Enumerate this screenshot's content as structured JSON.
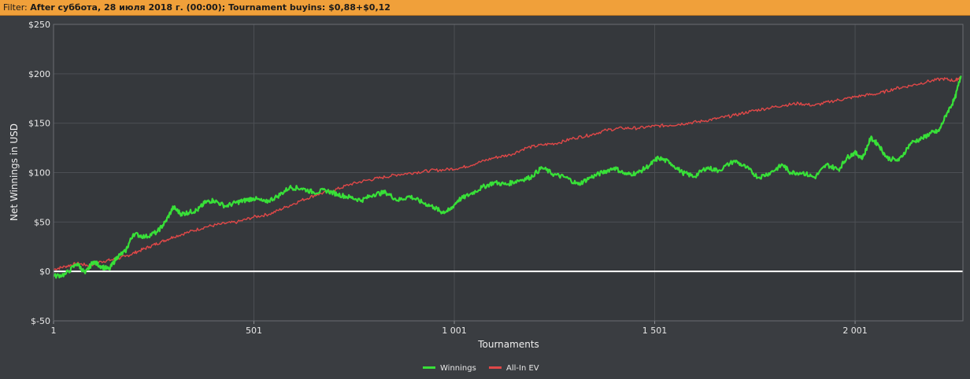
{
  "filter": {
    "label": "Filter:",
    "value": "After суббота, 28 июля 2018 г. (00:00); Tournament buyins: $0,88+$0,12"
  },
  "colors": {
    "background": "#3a3d41",
    "plot_bg": "#35383c",
    "filter_bg": "#f0a03a",
    "winnings": "#38e038",
    "allin_ev": "#e04848",
    "zero_line": "#ffffff"
  },
  "chart_data": {
    "type": "line",
    "xlabel": "Tournaments",
    "ylabel": "Net Winnings in USD",
    "xlim": [
      1,
      2270
    ],
    "ylim": [
      -50,
      250
    ],
    "x_ticks": [
      1,
      501,
      1001,
      1501,
      2001
    ],
    "x_tick_labels": [
      "1",
      "501",
      "1 001",
      "1 501",
      "2 001"
    ],
    "y_ticks": [
      -50,
      0,
      50,
      100,
      150,
      200,
      250
    ],
    "y_tick_labels": [
      "$-50",
      "$0",
      "$50",
      "$100",
      "$150",
      "$200",
      "$250"
    ],
    "grid": true,
    "legend_position": "bottom-center",
    "series": [
      {
        "name": "Winnings",
        "color": "#38e038",
        "x": [
          1,
          30,
          60,
          80,
          100,
          120,
          140,
          160,
          180,
          200,
          230,
          260,
          280,
          300,
          320,
          340,
          360,
          380,
          400,
          430,
          460,
          480,
          500,
          530,
          560,
          590,
          620,
          650,
          680,
          710,
          740,
          770,
          800,
          830,
          860,
          890,
          920,
          950,
          970,
          990,
          1010,
          1040,
          1070,
          1100,
          1130,
          1160,
          1190,
          1220,
          1250,
          1280,
          1310,
          1340,
          1370,
          1400,
          1430,
          1460,
          1490,
          1510,
          1540,
          1570,
          1600,
          1630,
          1660,
          1700,
          1730,
          1760,
          1790,
          1820,
          1840,
          1870,
          1900,
          1930,
          1960,
          1980,
          2000,
          2020,
          2040,
          2060,
          2080,
          2110,
          2140,
          2170,
          2190,
          2210,
          2230,
          2250,
          2265
        ],
        "values": [
          -5,
          -3,
          8,
          -2,
          10,
          5,
          2,
          15,
          20,
          38,
          35,
          40,
          50,
          65,
          58,
          60,
          62,
          70,
          72,
          66,
          70,
          72,
          74,
          70,
          76,
          85,
          84,
          80,
          82,
          78,
          75,
          72,
          78,
          80,
          72,
          76,
          70,
          65,
          60,
          62,
          72,
          78,
          85,
          90,
          88,
          92,
          95,
          105,
          98,
          95,
          88,
          95,
          100,
          105,
          98,
          100,
          108,
          115,
          110,
          100,
          96,
          105,
          102,
          112,
          105,
          95,
          100,
          108,
          100,
          100,
          95,
          108,
          103,
          115,
          120,
          115,
          135,
          128,
          115,
          112,
          130,
          135,
          140,
          142,
          160,
          175,
          198
        ]
      },
      {
        "name": "All-In EV",
        "color": "#e04848",
        "x": [
          1,
          30,
          60,
          90,
          120,
          150,
          180,
          210,
          240,
          270,
          300,
          340,
          380,
          420,
          460,
          500,
          540,
          580,
          620,
          660,
          700,
          740,
          780,
          820,
          860,
          900,
          940,
          980,
          1020,
          1060,
          1100,
          1140,
          1180,
          1220,
          1260,
          1300,
          1340,
          1380,
          1420,
          1460,
          1500,
          1540,
          1580,
          1620,
          1660,
          1700,
          1740,
          1780,
          1820,
          1860,
          1900,
          1940,
          1980,
          2020,
          2060,
          2100,
          2140,
          2180,
          2220,
          2250,
          2265
        ],
        "values": [
          2,
          5,
          8,
          6,
          10,
          12,
          15,
          20,
          25,
          30,
          35,
          40,
          45,
          48,
          50,
          55,
          58,
          65,
          72,
          78,
          82,
          88,
          92,
          95,
          98,
          100,
          102,
          103,
          105,
          110,
          115,
          118,
          125,
          128,
          130,
          135,
          138,
          143,
          145,
          145,
          147,
          148,
          150,
          152,
          155,
          158,
          162,
          165,
          168,
          170,
          168,
          172,
          175,
          178,
          180,
          185,
          188,
          192,
          195,
          193,
          197
        ]
      }
    ]
  }
}
